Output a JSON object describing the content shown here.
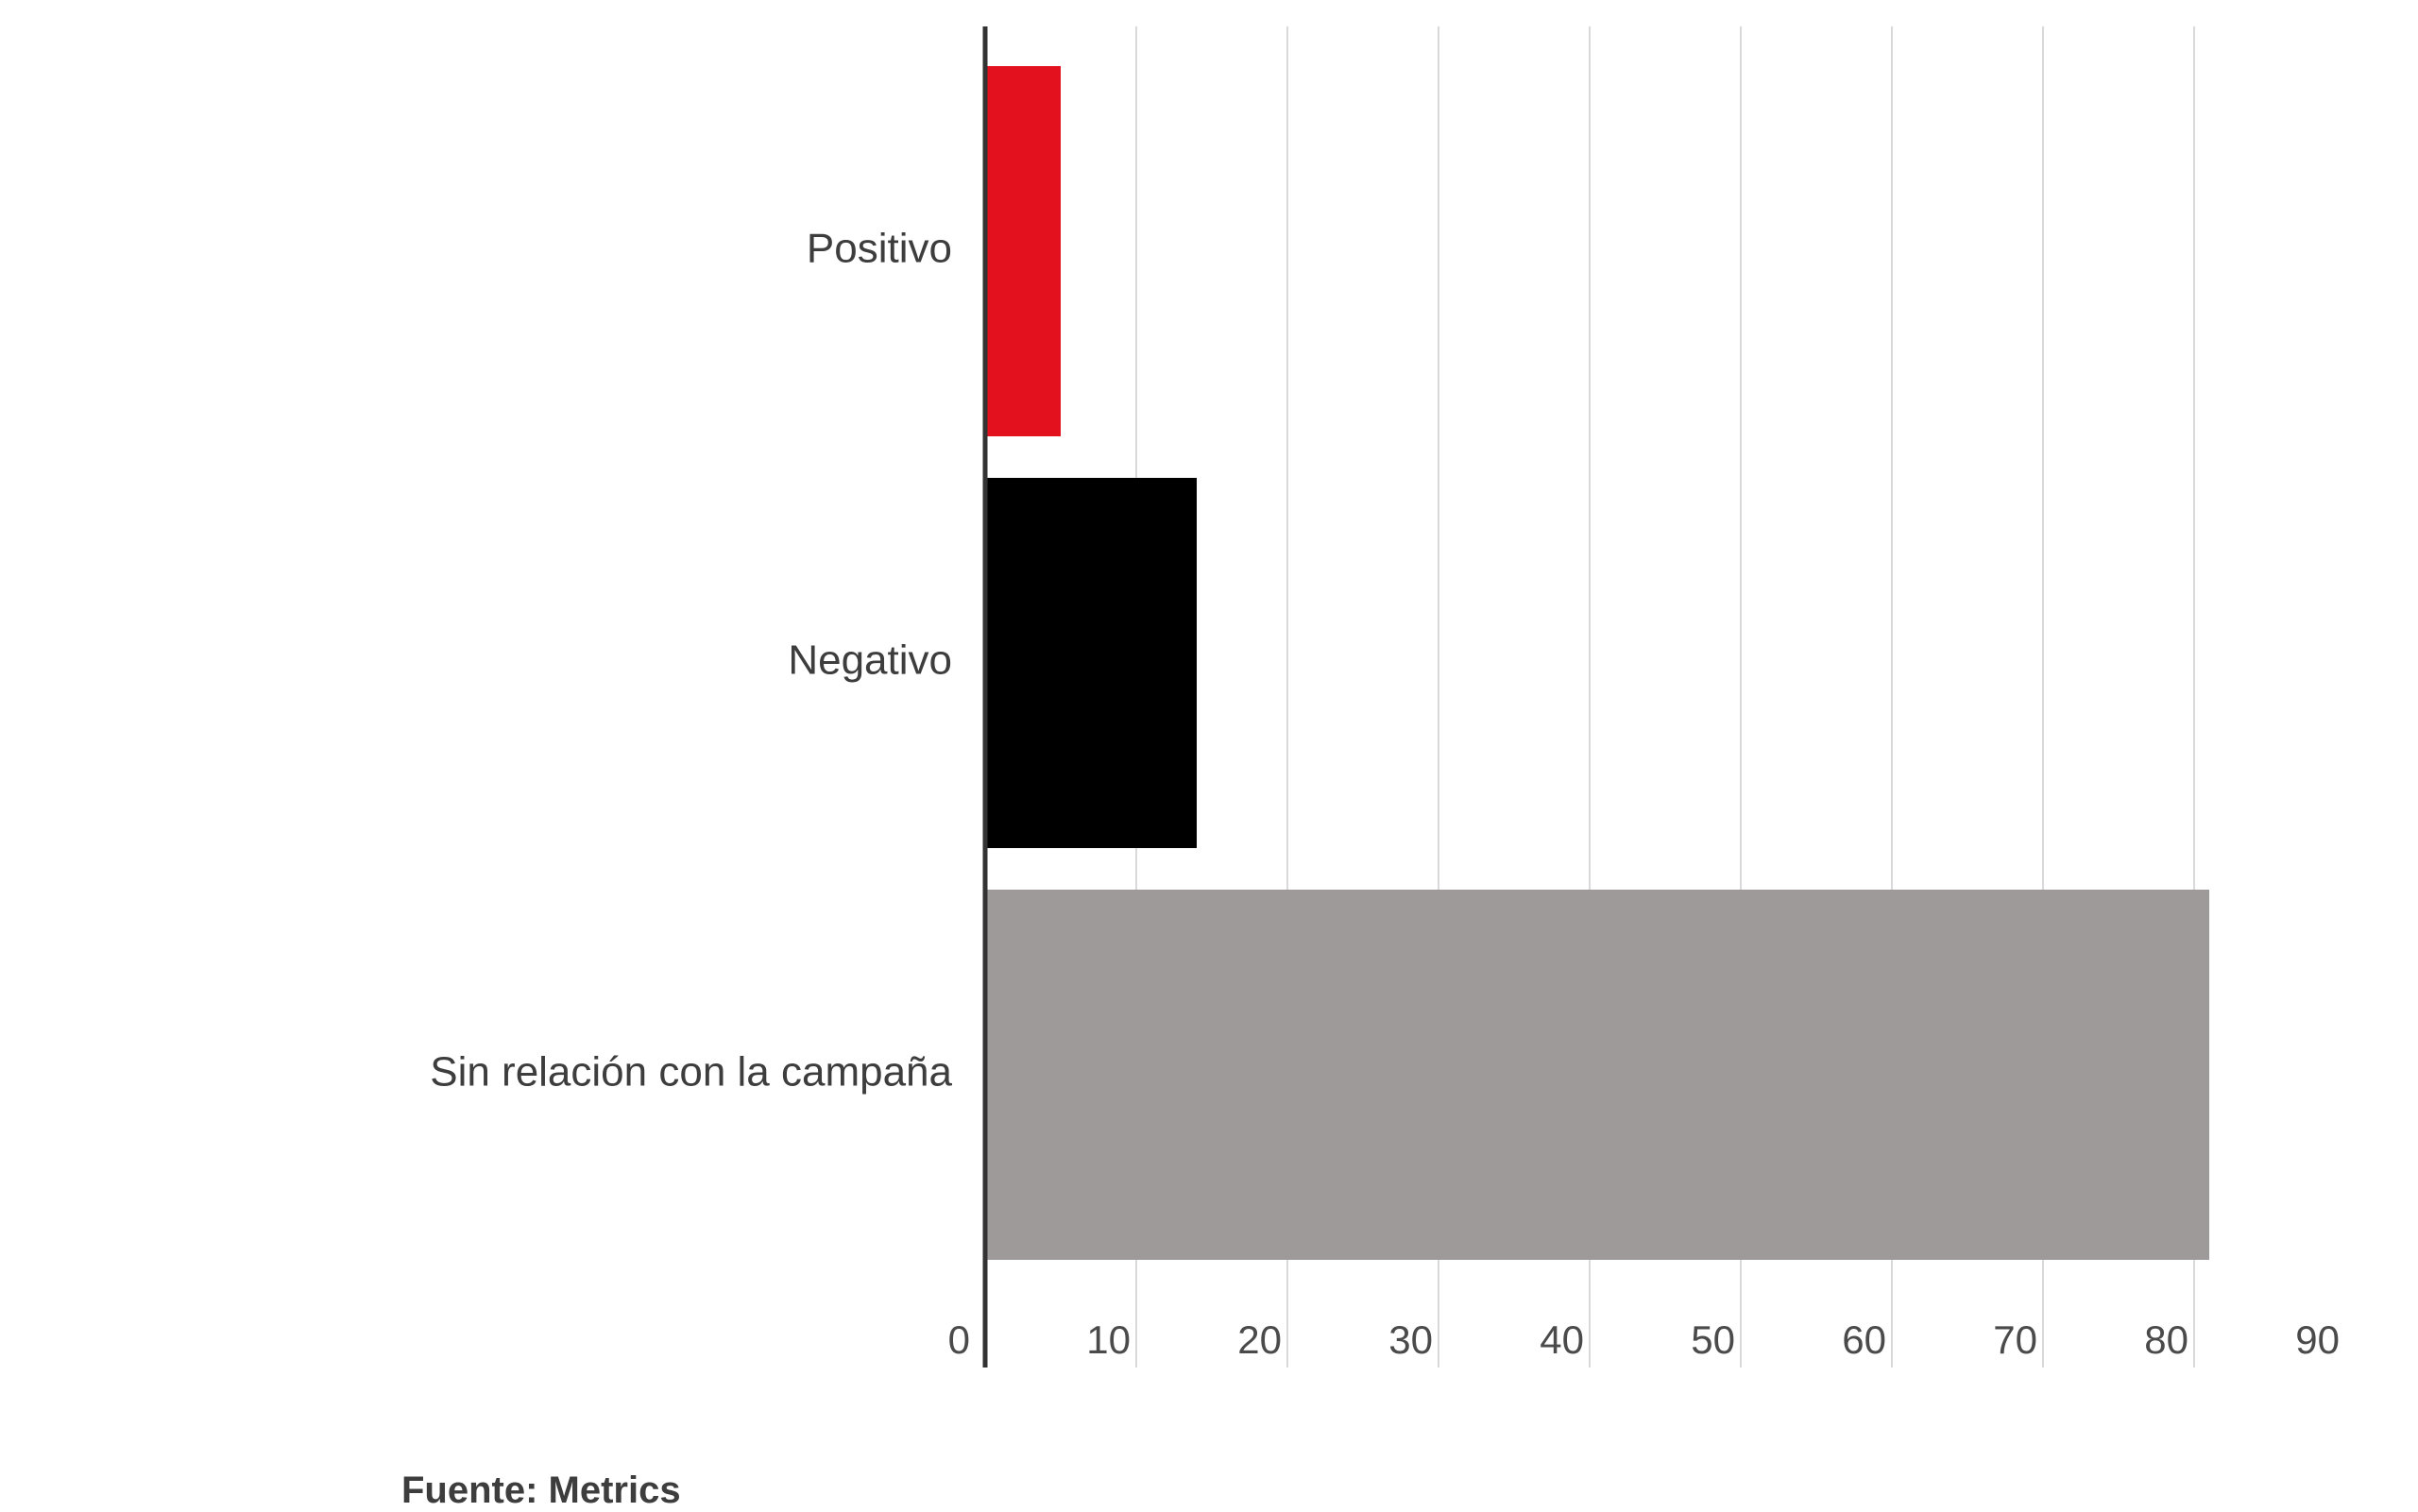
{
  "chart_data": {
    "type": "bar",
    "orientation": "horizontal",
    "categories": [
      "Positivo",
      "Negativo",
      "Sin relación con la campaña"
    ],
    "values": [
      5,
      14,
      81
    ],
    "xlim": [
      0,
      90
    ],
    "ticks": [
      0,
      10,
      20,
      30,
      40,
      50,
      60,
      70,
      80,
      90
    ],
    "grid": true,
    "title": "",
    "xlabel": "",
    "ylabel": ""
  },
  "colors": {
    "positivo": "#e3101e",
    "negativo": "#000000",
    "sin_relacion": "#9e9a99",
    "grid": "#d9d9d9",
    "axis": "#333333"
  },
  "source": "Fuente: Metrics"
}
